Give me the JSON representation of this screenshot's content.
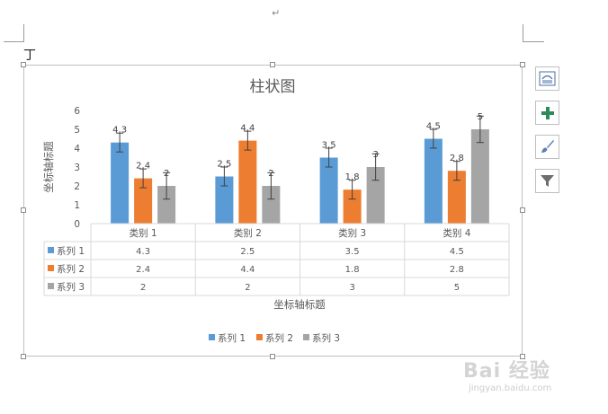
{
  "document": {
    "paragraph_mark": "↵",
    "cursor_glyph": "丁"
  },
  "chart_data": {
    "type": "bar",
    "title": "柱状图",
    "xlabel": "坐标轴标题",
    "ylabel": "坐标轴标题",
    "ylim": [
      0,
      6
    ],
    "yticks": [
      "0",
      "1",
      "2",
      "3",
      "4",
      "5",
      "6"
    ],
    "categories": [
      "类别 1",
      "类别 2",
      "类别 3",
      "类别 4"
    ],
    "series": [
      {
        "name": "系列 1",
        "color": "#5b9bd5",
        "values": [
          4.3,
          2.5,
          3.5,
          4.5
        ],
        "labels": [
          "4.3",
          "2.5",
          "3.5",
          "4.5"
        ],
        "table": [
          "4.3",
          "2.5",
          "3.5",
          "4.5"
        ],
        "error": 0.5
      },
      {
        "name": "系列 2",
        "color": "#ed7d31",
        "values": [
          2.4,
          4.4,
          1.8,
          2.8
        ],
        "labels": [
          "2.4",
          "4.4",
          "1.8",
          "2.8"
        ],
        "table": [
          "2.4",
          "4.4",
          "1.8",
          "2.8"
        ],
        "error": 0.5
      },
      {
        "name": "系列 3",
        "color": "#a5a5a5",
        "values": [
          2,
          2,
          3,
          5
        ],
        "labels": [
          "2",
          "2",
          "3",
          "5"
        ],
        "table": [
          "2",
          "2",
          "3",
          "5"
        ],
        "error": 0.7
      }
    ],
    "error_bars": true,
    "data_table": true,
    "grid": false,
    "legend_position": "bottom"
  },
  "side_tools": [
    {
      "name": "chart-styles-button",
      "icon": "layout-icon"
    },
    {
      "name": "chart-elements-button",
      "icon": "plus-icon",
      "color": "#2e8b57"
    },
    {
      "name": "chart-styles-brush-button",
      "icon": "brush-icon"
    },
    {
      "name": "chart-filters-button",
      "icon": "filter-icon"
    }
  ],
  "watermark": {
    "main": "Bai 经验",
    "sub": "jingyan.baidu.com"
  }
}
